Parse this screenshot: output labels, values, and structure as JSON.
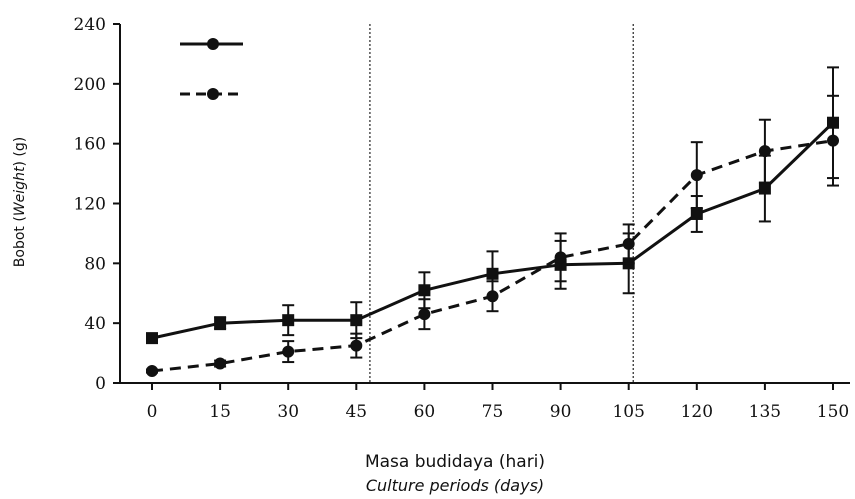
{
  "chart_data": {
    "type": "line",
    "title": "",
    "xlabel": "Masa budidaya (hari)",
    "xlabel_en": "Culture periods (days)",
    "ylabel_prefix": "Bobot (",
    "ylabel_italic": "Weight",
    "ylabel_suffix": ") (g)",
    "x": [
      0,
      15,
      30,
      45,
      60,
      75,
      90,
      105,
      120,
      135,
      150
    ],
    "x_tick_labels": [
      "0",
      "15",
      "30",
      "45",
      "60",
      "75",
      "90",
      "105",
      "120",
      "135",
      "150"
    ],
    "ylim": [
      0,
      240
    ],
    "y_ticks": [
      0,
      40,
      80,
      120,
      160,
      200,
      240
    ],
    "y_tick_labels": [
      "0",
      "40",
      "80",
      "120",
      "160",
      "200",
      "240"
    ],
    "vertical_lines_x": [
      48,
      106
    ],
    "legend_position": "top-left",
    "grid": false,
    "series": [
      {
        "style": "solid",
        "marker": "square",
        "values": [
          30,
          40,
          42,
          42,
          62,
          73,
          79,
          80,
          113,
          130,
          174
        ],
        "errors": [
          2,
          4,
          10,
          12,
          12,
          15,
          16,
          20,
          12,
          22,
          37
        ]
      },
      {
        "style": "dashed",
        "marker": "circle",
        "values": [
          8,
          13,
          21,
          25,
          46,
          58,
          84,
          93,
          139,
          155,
          162
        ],
        "errors": [
          1,
          2,
          7,
          8,
          10,
          10,
          16,
          13,
          22,
          21,
          30
        ]
      }
    ],
    "colors": {
      "line": "#111111",
      "reference_line": "#333333"
    }
  }
}
